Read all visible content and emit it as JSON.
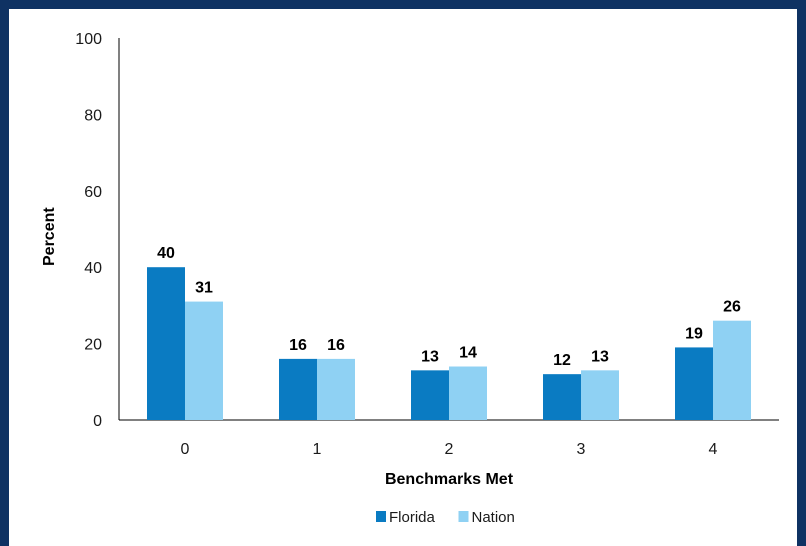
{
  "chart_data": {
    "type": "bar",
    "title": "",
    "xlabel": "Benchmarks Met",
    "ylabel": "Percent",
    "categories": [
      "0",
      "1",
      "2",
      "3",
      "4"
    ],
    "series": [
      {
        "name": "Florida",
        "values": [
          40,
          16,
          13,
          12,
          19
        ],
        "color": "#0a7bc2"
      },
      {
        "name": "Nation",
        "values": [
          31,
          16,
          14,
          13,
          26
        ],
        "color": "#8fd1f3"
      }
    ],
    "ylim": [
      0,
      100
    ],
    "yticks": [
      0,
      20,
      40,
      60,
      80,
      100
    ],
    "grid": false,
    "legend_position": "bottom-center"
  }
}
